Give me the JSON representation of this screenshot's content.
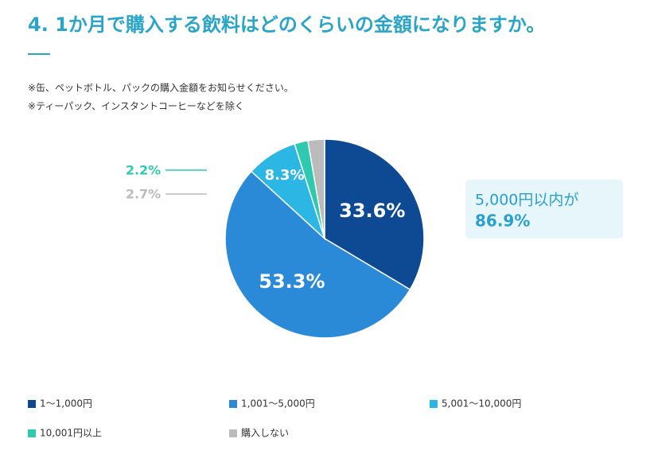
{
  "chart_data": {
    "type": "pie",
    "title": "4. 1か月で購入する飲料はどのくらいの金額になりますか。",
    "notes": [
      "※缶、ペットボトル、パックの購入金額をお知らせください。",
      "※ティーパック、インスタントコーヒーなどを除く"
    ],
    "categories": [
      "1～1,000円",
      "1,001～5,000円",
      "5,001～10,000円",
      "10,001円以上",
      "購入しない"
    ],
    "values": [
      33.6,
      53.3,
      8.3,
      2.2,
      2.7
    ],
    "value_labels": [
      "33.6%",
      "53.3%",
      "8.3%",
      "2.2%",
      "2.7%"
    ],
    "colors": [
      "#0d4a93",
      "#2a8ad8",
      "#2bb6e3",
      "#2ec9b0",
      "#bbbbbb"
    ],
    "annotation": {
      "text": "5,000円以内が",
      "value": "86.9%"
    }
  }
}
